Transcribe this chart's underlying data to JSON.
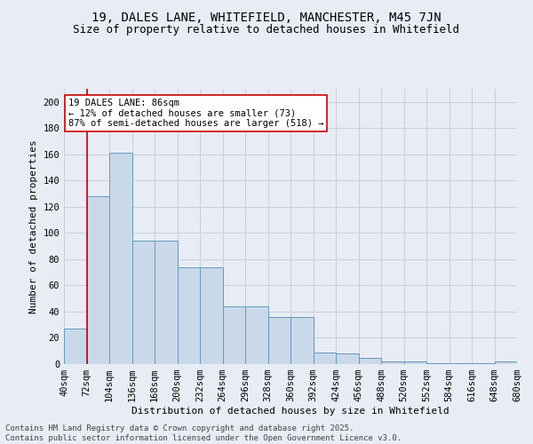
{
  "title1": "19, DALES LANE, WHITEFIELD, MANCHESTER, M45 7JN",
  "title2": "Size of property relative to detached houses in Whitefield",
  "xlabel": "Distribution of detached houses by size in Whitefield",
  "ylabel": "Number of detached properties",
  "bar_values": [
    27,
    128,
    161,
    94,
    94,
    74,
    74,
    44,
    44,
    36,
    36,
    9,
    8,
    5,
    2,
    2,
    1,
    1,
    1,
    2
  ],
  "bin_edges": [
    "40sqm",
    "72sqm",
    "104sqm",
    "136sqm",
    "168sqm",
    "200sqm",
    "232sqm",
    "264sqm",
    "296sqm",
    "328sqm",
    "360sqm",
    "392sqm",
    "424sqm",
    "456sqm",
    "488sqm",
    "520sqm",
    "552sqm",
    "584sqm",
    "616sqm",
    "648sqm",
    "680sqm"
  ],
  "bar_color": "#c9d9ea",
  "bar_edge_color": "#6699bb",
  "grid_color": "#c8d0dc",
  "background_color": "#e8ecf4",
  "annotation_text_line1": "19 DALES LANE: 86sqm",
  "annotation_text_line2": "← 12% of detached houses are smaller (73)",
  "annotation_text_line3": "87% of semi-detached houses are larger (518) →",
  "annotation_box_color": "#ffffff",
  "annotation_box_edge_color": "#cc0000",
  "red_line_color": "#cc0000",
  "ylim_max": 210,
  "yticks": [
    0,
    20,
    40,
    60,
    80,
    100,
    120,
    140,
    160,
    180,
    200
  ],
  "footer1": "Contains HM Land Registry data © Crown copyright and database right 2025.",
  "footer2": "Contains public sector information licensed under the Open Government Licence v3.0.",
  "title1_fontsize": 10,
  "title2_fontsize": 9,
  "axis_label_fontsize": 8,
  "tick_fontsize": 7.5,
  "annotation_fontsize": 7.5,
  "footer_fontsize": 6.5
}
